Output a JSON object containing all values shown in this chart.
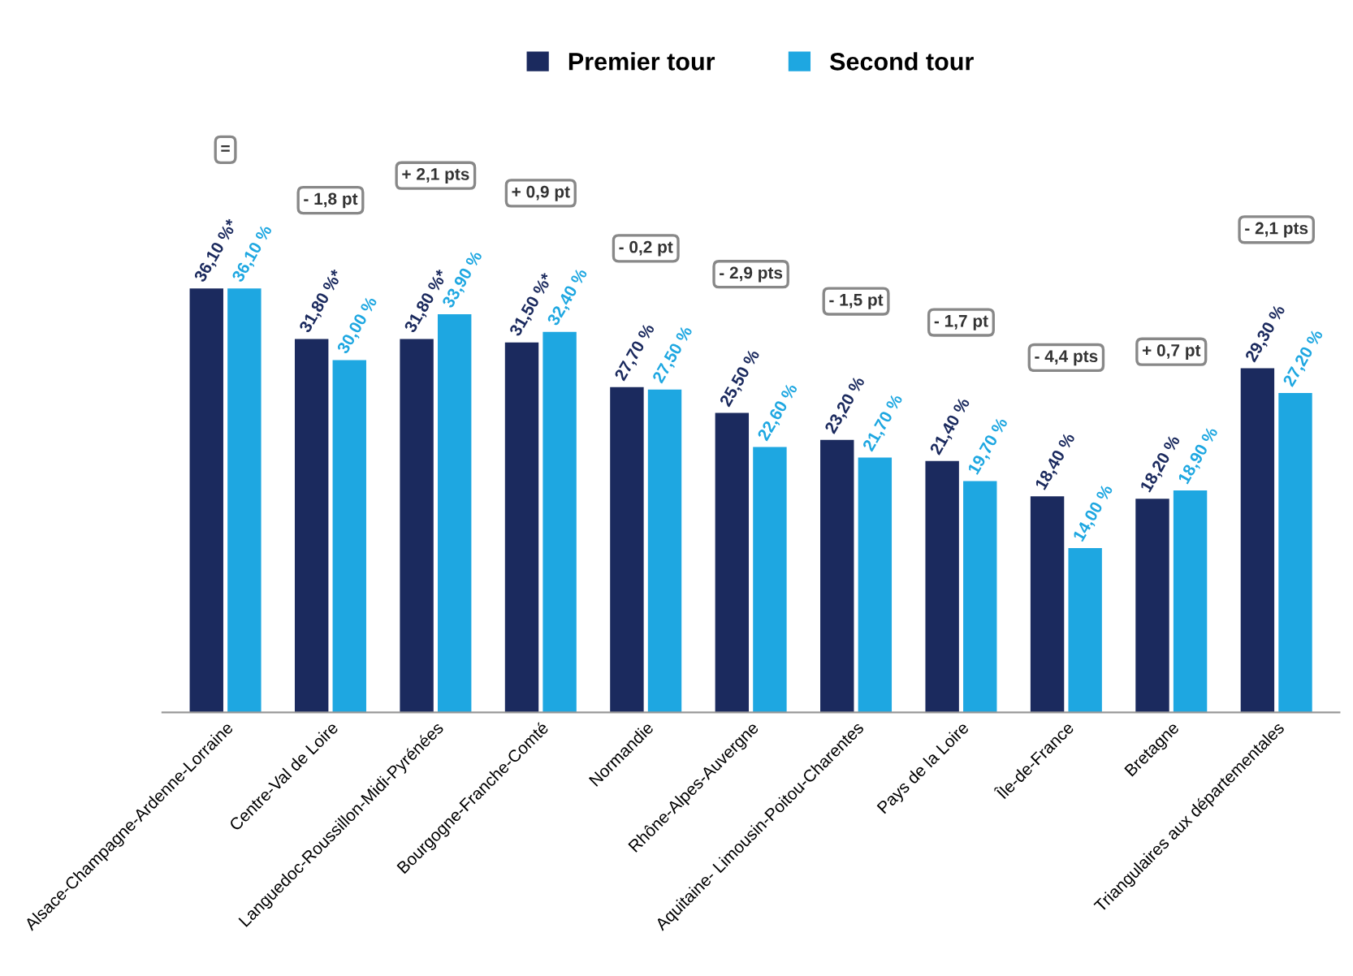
{
  "chart_data": {
    "type": "bar",
    "categories": [
      "Alsace-Champagne-Ardenne-Lorraine",
      "Centre-Val de Loire",
      "Languedoc-Roussillon-Midi-Pyrénées",
      "Bourgogne-Franche-Comté",
      "Normandie",
      "Rhône-Alpes-Auvergne",
      "Aquitaine- Limousin-Poitou-Charentes",
      "Pays de la Loire",
      "Île-de-France",
      "Bretagne",
      "Triangulaires aux départementales"
    ],
    "series": [
      {
        "name": "Premier tour",
        "color": "#1b2a5e",
        "values": [
          36.1,
          31.8,
          31.8,
          31.5,
          27.7,
          25.5,
          23.2,
          21.4,
          18.4,
          18.2,
          29.3
        ],
        "value_labels": [
          "36,10 %*",
          "31,80 %*",
          "31,80 %*",
          "31,50 %*",
          "27,70 %",
          "25,50 %",
          "23,20 %",
          "21,40 %",
          "18,40 %",
          "18,20 %",
          "29,30 %"
        ]
      },
      {
        "name": "Second tour",
        "color": "#1ea7e1",
        "values": [
          36.1,
          30.0,
          33.9,
          32.4,
          27.5,
          22.6,
          21.7,
          19.7,
          14.0,
          18.9,
          27.2
        ],
        "value_labels": [
          "36,10 %",
          "30,00 %",
          "33,90 %",
          "32,40 %",
          "27,50 %",
          "22,60 %",
          "21,70 %",
          "19,70 %",
          "14,00 %",
          "18,90 %",
          "27,20 %"
        ]
      }
    ],
    "annotations": [
      "=",
      "- 1,8 pt",
      "+ 2,1 pts",
      "+ 0,9 pt",
      "- 0,2 pt",
      "- 2,9 pts",
      "- 1,5 pt",
      "- 1,7 pt",
      "- 4,4 pts",
      "+ 0,7 pt",
      "- 2,1 pts"
    ],
    "legend": "top",
    "grid": false
  }
}
